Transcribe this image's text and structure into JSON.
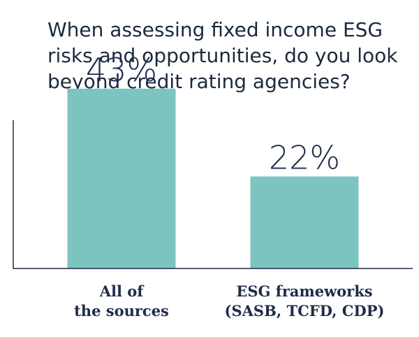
{
  "chart_data": {
    "type": "bar",
    "title": "When assessing fixed income ESG risks and opportunities, do you look beyond credit rating agencies?",
    "categories": [
      [
        "All of",
        "the sources"
      ],
      [
        "ESG frameworks",
        "(SASB, TCFD, CDP)"
      ]
    ],
    "values": [
      43,
      22
    ],
    "value_labels": [
      "43%",
      "22%"
    ],
    "xlabel": "",
    "ylabel": "",
    "ylim": [
      0,
      50
    ],
    "grid": false,
    "colors": {
      "bar": "#7cc4c0",
      "axis": "#1e2b4a",
      "text": "#1e2b4a",
      "title": "#1a2a3e"
    }
  }
}
